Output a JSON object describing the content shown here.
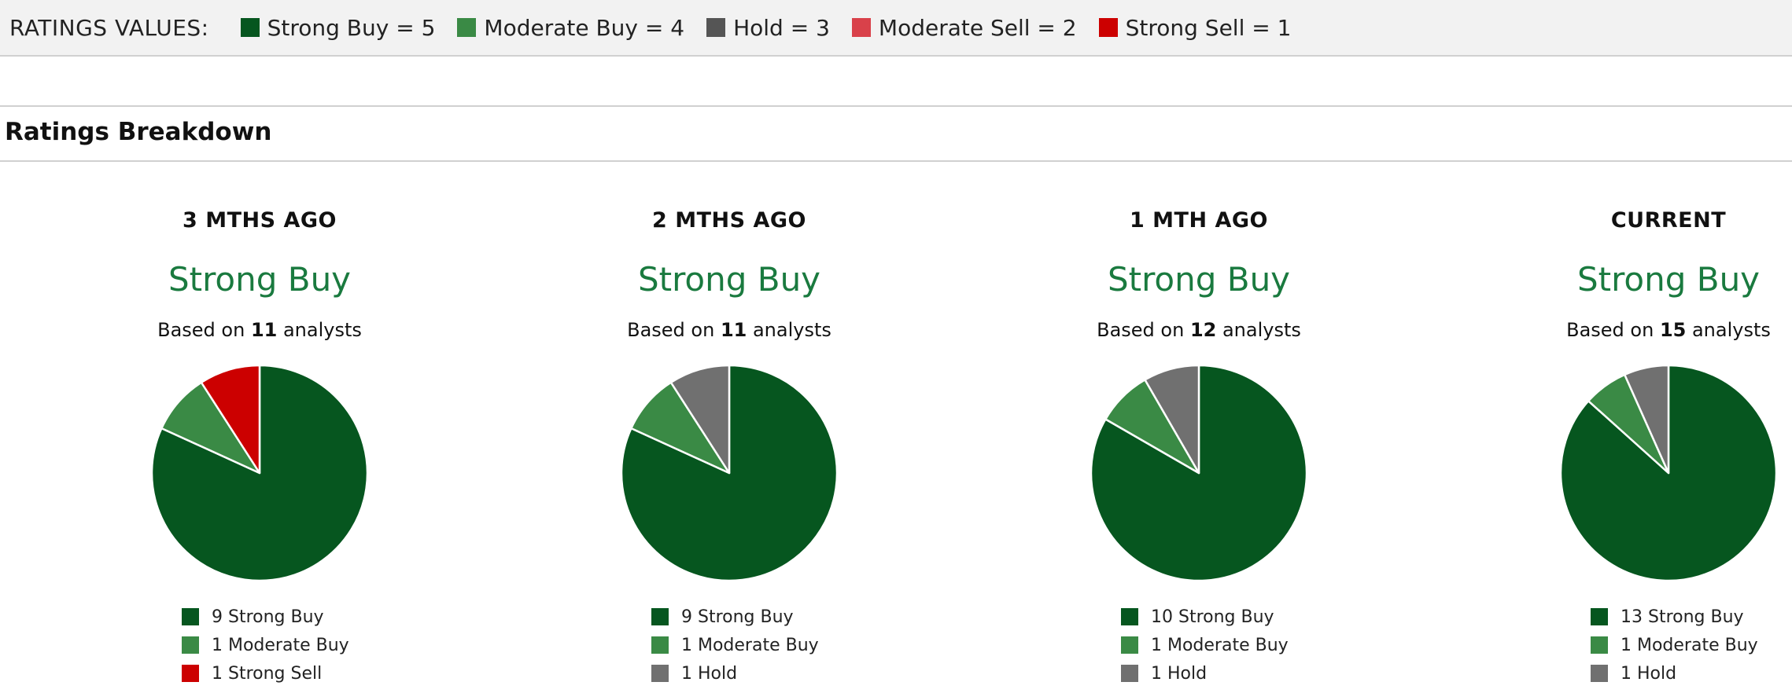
{
  "ratings_legend": {
    "title": "RATINGS VALUES:",
    "items": [
      {
        "label": "Strong Buy = 5",
        "color": "#06561f"
      },
      {
        "label": "Moderate Buy = 4",
        "color": "#3a8a45"
      },
      {
        "label": "Hold = 3",
        "color": "#555555"
      },
      {
        "label": "Moderate Sell = 2",
        "color": "#d9414a"
      },
      {
        "label": "Strong Sell = 1",
        "color": "#cc0000"
      }
    ]
  },
  "section_title": "Ratings Breakdown",
  "chart_data": [
    {
      "type": "pie",
      "title": "3 MTHS AGO",
      "consensus": "Strong Buy",
      "based_prefix": "Based on ",
      "analysts": "11",
      "based_suffix": " analysts",
      "slices": [
        {
          "label": "9 Strong Buy",
          "value": 9,
          "color": "#06561f"
        },
        {
          "label": "1 Moderate Buy",
          "value": 1,
          "color": "#3a8a45"
        },
        {
          "label": "1 Strong Sell",
          "value": 1,
          "color": "#cc0000"
        }
      ]
    },
    {
      "type": "pie",
      "title": "2 MTHS AGO",
      "consensus": "Strong Buy",
      "based_prefix": "Based on ",
      "analysts": "11",
      "based_suffix": " analysts",
      "slices": [
        {
          "label": "9 Strong Buy",
          "value": 9,
          "color": "#06561f"
        },
        {
          "label": "1 Moderate Buy",
          "value": 1,
          "color": "#3a8a45"
        },
        {
          "label": "1 Hold",
          "value": 1,
          "color": "#707070"
        }
      ]
    },
    {
      "type": "pie",
      "title": "1 MTH AGO",
      "consensus": "Strong Buy",
      "based_prefix": "Based on ",
      "analysts": "12",
      "based_suffix": " analysts",
      "slices": [
        {
          "label": "10 Strong Buy",
          "value": 10,
          "color": "#06561f"
        },
        {
          "label": "1 Moderate Buy",
          "value": 1,
          "color": "#3a8a45"
        },
        {
          "label": "1 Hold",
          "value": 1,
          "color": "#707070"
        }
      ]
    },
    {
      "type": "pie",
      "title": "CURRENT",
      "consensus": "Strong Buy",
      "based_prefix": "Based on ",
      "analysts": "15",
      "based_suffix": " analysts",
      "slices": [
        {
          "label": "13 Strong Buy",
          "value": 13,
          "color": "#06561f"
        },
        {
          "label": "1 Moderate Buy",
          "value": 1,
          "color": "#3a8a45"
        },
        {
          "label": "1 Hold",
          "value": 1,
          "color": "#707070"
        }
      ]
    }
  ]
}
